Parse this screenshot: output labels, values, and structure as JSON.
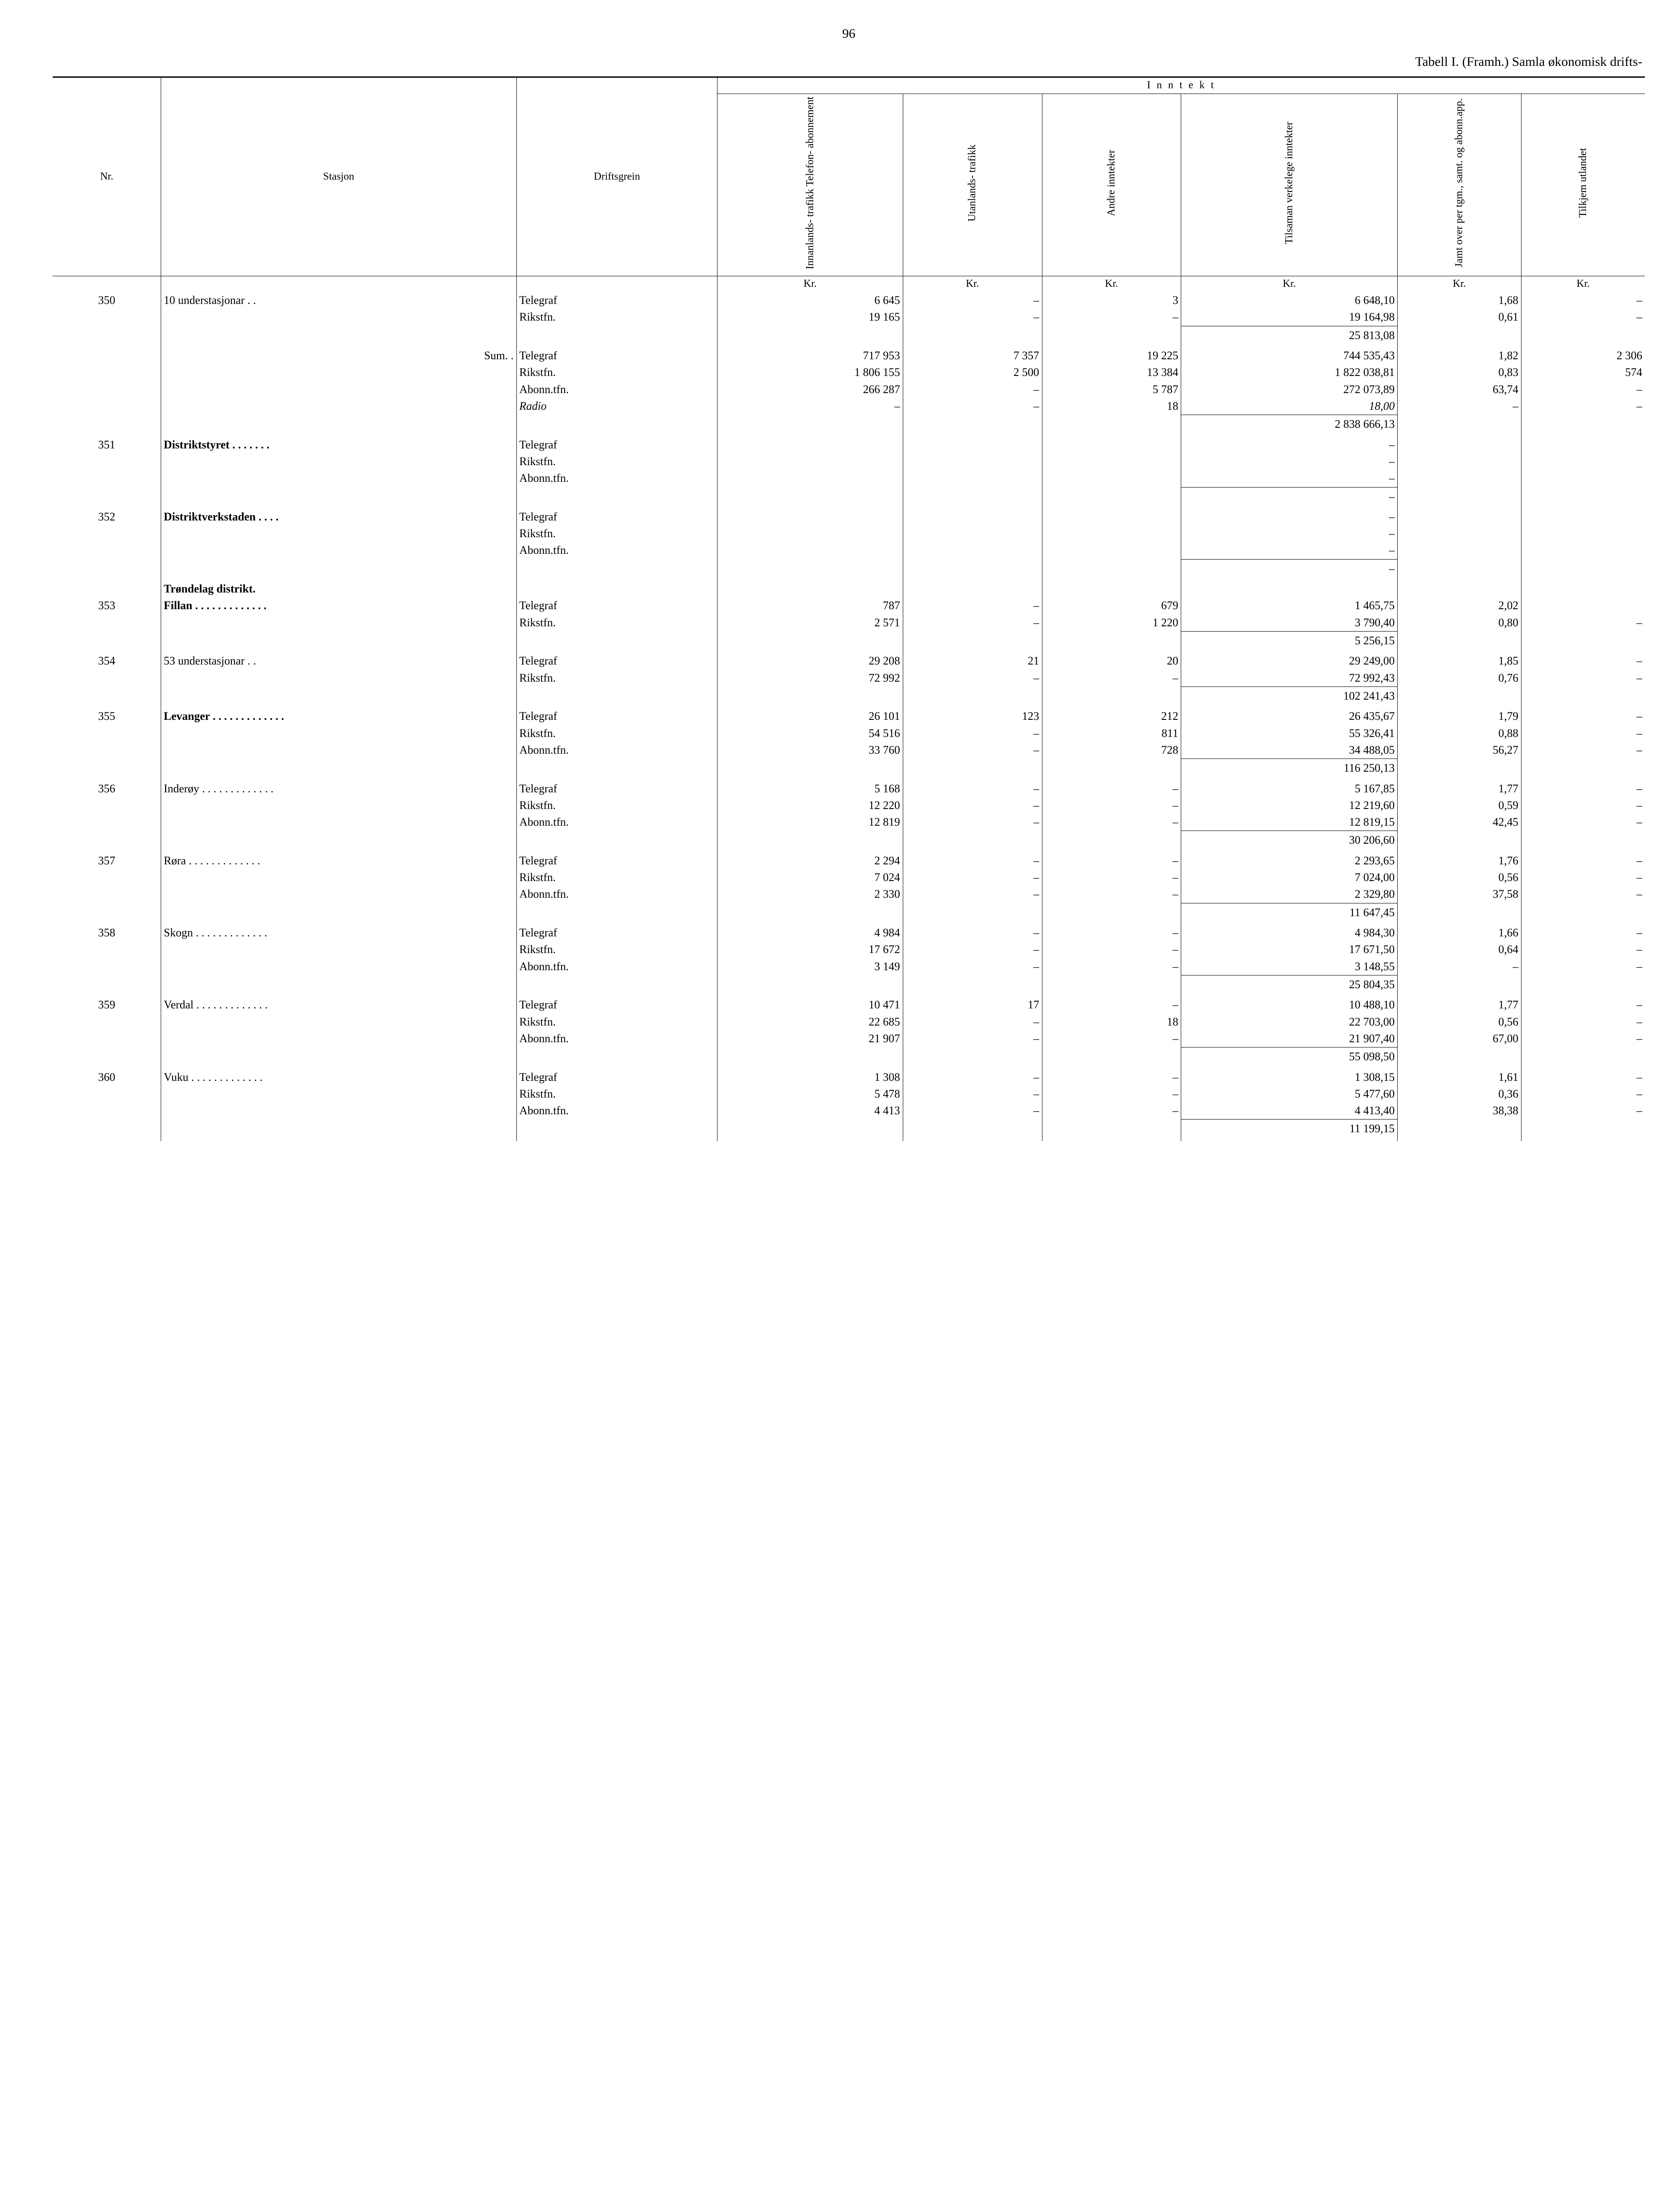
{
  "page_number": "96",
  "title_prefix": "Tabell I. (Framh.) Samla økonomisk drifts-",
  "headers": {
    "nr": "Nr.",
    "stasjon": "Stasjon",
    "driftsgrein": "Driftsgrein",
    "inntekt_group": "I n n t e k t",
    "col1": "Innanlands-\ntrafikk\nTelefon-\nabonnement",
    "col2": "Utanlands-\ntrafikk",
    "col3": "Andre\ninntekter",
    "col4": "Tilsaman\nverkelege\ninntekter",
    "col5": "Jamt over\nper tgm.,\nsamt. og\nabonn.app.",
    "col6": "Tilkjem\nutlandet",
    "kr": "Kr."
  },
  "sections": [
    {
      "nr": "350",
      "station": "10 understasjonar",
      "station_style": "normal",
      "station_suffix": "dots2",
      "rows": [
        {
          "dg": "Telegraf",
          "c1": "6 645",
          "c2": "–",
          "c3": "3",
          "c4": "6 648,10",
          "c5": "1,68",
          "c6": "–"
        },
        {
          "dg": "Rikstfn.",
          "c1": "19 165",
          "c2": "–",
          "c3": "–",
          "c4": "19 164,98",
          "c5": "0,61",
          "c6": "–"
        }
      ],
      "subtotal": "25 813,08"
    },
    {
      "nr": "",
      "station": "Sum",
      "station_style": "sum",
      "station_suffix": "dots2",
      "rows": [
        {
          "dg": "Telegraf",
          "c1": "717 953",
          "c2": "7 357",
          "c3": "19 225",
          "c4": "744 535,43",
          "c5": "1,82",
          "c6": "2 306"
        },
        {
          "dg": "Rikstfn.",
          "c1": "1 806 155",
          "c2": "2 500",
          "c3": "13 384",
          "c4": "1 822 038,81",
          "c5": "0,83",
          "c6": "574"
        },
        {
          "dg": "Abonn.tfn.",
          "c1": "266 287",
          "c2": "–",
          "c3": "5 787",
          "c4": "272 073,89",
          "c5": "63,74",
          "c6": "–"
        },
        {
          "dg": "Radio",
          "dg_italic": true,
          "c1": "–",
          "c2": "–",
          "c3": "18",
          "c4": "18,00",
          "c4_italic": true,
          "c5": "–",
          "c6": "–"
        }
      ],
      "subtotal": "2 838 666,13"
    },
    {
      "nr": "351",
      "station": "Distriktstyret",
      "station_style": "bold",
      "station_suffix": "dots7",
      "rows": [
        {
          "dg": "Telegraf",
          "c1": "",
          "c2": "",
          "c3": "",
          "c4": "–",
          "c5": "",
          "c6": ""
        },
        {
          "dg": "Rikstfn.",
          "c1": "",
          "c2": "",
          "c3": "",
          "c4": "–",
          "c5": "",
          "c6": ""
        },
        {
          "dg": "Abonn.tfn.",
          "c1": "",
          "c2": "",
          "c3": "",
          "c4": "–",
          "c5": "",
          "c6": ""
        }
      ],
      "subtotal": "–"
    },
    {
      "nr": "352",
      "station": "Distriktverkstaden",
      "station_style": "bold",
      "station_suffix": "dots4",
      "rows": [
        {
          "dg": "Telegraf",
          "c1": "",
          "c2": "",
          "c3": "",
          "c4": "–",
          "c5": "",
          "c6": ""
        },
        {
          "dg": "Rikstfn.",
          "c1": "",
          "c2": "",
          "c3": "",
          "c4": "–",
          "c5": "",
          "c6": ""
        },
        {
          "dg": "Abonn.tfn.",
          "c1": "",
          "c2": "",
          "c3": "",
          "c4": "–",
          "c5": "",
          "c6": ""
        }
      ],
      "subtotal": "–"
    },
    {
      "heading": "Trøndelag distrikt."
    },
    {
      "nr": "353",
      "station": "Fillan",
      "station_style": "bold",
      "station_suffix": "dots",
      "rows": [
        {
          "dg": "Telegraf",
          "c1": "787",
          "c2": "–",
          "c3": "679",
          "c4": "1 465,75",
          "c5": "2,02",
          "c6": ""
        },
        {
          "dg": "Rikstfn.",
          "c1": "2 571",
          "c2": "–",
          "c3": "1 220",
          "c4": "3 790,40",
          "c5": "0,80",
          "c6": "–"
        }
      ],
      "subtotal": "5 256,15"
    },
    {
      "nr": "354",
      "station": "53 understasjonar",
      "station_style": "normal",
      "station_suffix": "dots2",
      "rows": [
        {
          "dg": "Telegraf",
          "c1": "29 208",
          "c2": "21",
          "c3": "20",
          "c4": "29 249,00",
          "c5": "1,85",
          "c6": "–"
        },
        {
          "dg": "Rikstfn.",
          "c1": "72 992",
          "c2": "–",
          "c3": "–",
          "c4": "72 992,43",
          "c5": "0,76",
          "c6": "–"
        }
      ],
      "subtotal": "102 241,43"
    },
    {
      "nr": "355",
      "station": "Levanger",
      "station_style": "bold",
      "station_suffix": "dots",
      "rows": [
        {
          "dg": "Telegraf",
          "c1": "26 101",
          "c2": "123",
          "c3": "212",
          "c4": "26 435,67",
          "c5": "1,79",
          "c6": "–"
        },
        {
          "dg": "Rikstfn.",
          "c1": "54 516",
          "c2": "–",
          "c3": "811",
          "c4": "55 326,41",
          "c5": "0,88",
          "c6": "–"
        },
        {
          "dg": "Abonn.tfn.",
          "c1": "33 760",
          "c2": "–",
          "c3": "728",
          "c4": "34 488,05",
          "c5": "56,27",
          "c6": "–"
        }
      ],
      "subtotal": "116 250,13"
    },
    {
      "nr": "356",
      "station": "Inderøy",
      "station_style": "normal",
      "station_suffix": "dots",
      "rows": [
        {
          "dg": "Telegraf",
          "c1": "5 168",
          "c2": "–",
          "c3": "–",
          "c4": "5 167,85",
          "c5": "1,77",
          "c6": "–"
        },
        {
          "dg": "Rikstfn.",
          "c1": "12 220",
          "c2": "–",
          "c3": "–",
          "c4": "12 219,60",
          "c5": "0,59",
          "c6": "–"
        },
        {
          "dg": "Abonn.tfn.",
          "c1": "12 819",
          "c2": "–",
          "c3": "–",
          "c4": "12 819,15",
          "c5": "42,45",
          "c6": "–"
        }
      ],
      "subtotal": "30 206,60"
    },
    {
      "nr": "357",
      "station": "Røra",
      "station_style": "normal",
      "station_suffix": "dots",
      "rows": [
        {
          "dg": "Telegraf",
          "c1": "2 294",
          "c2": "–",
          "c3": "–",
          "c4": "2 293,65",
          "c5": "1,76",
          "c6": "–"
        },
        {
          "dg": "Rikstfn.",
          "c1": "7 024",
          "c2": "–",
          "c3": "–",
          "c4": "7 024,00",
          "c5": "0,56",
          "c6": "–"
        },
        {
          "dg": "Abonn.tfn.",
          "c1": "2 330",
          "c2": "–",
          "c3": "–",
          "c4": "2 329,80",
          "c5": "37,58",
          "c6": "–"
        }
      ],
      "subtotal": "11 647,45"
    },
    {
      "nr": "358",
      "station": "Skogn",
      "station_style": "normal",
      "station_suffix": "dots",
      "rows": [
        {
          "dg": "Telegraf",
          "c1": "4 984",
          "c2": "–",
          "c3": "–",
          "c4": "4 984,30",
          "c5": "1,66",
          "c6": "–"
        },
        {
          "dg": "Rikstfn.",
          "c1": "17 672",
          "c2": "–",
          "c3": "–",
          "c4": "17 671,50",
          "c5": "0,64",
          "c6": "–"
        },
        {
          "dg": "Abonn.tfn.",
          "c1": "3 149",
          "c2": "–",
          "c3": "–",
          "c4": "3 148,55",
          "c5": "–",
          "c6": "–"
        }
      ],
      "subtotal": "25 804,35"
    },
    {
      "nr": "359",
      "station": "Verdal",
      "station_style": "normal",
      "station_suffix": "dots",
      "rows": [
        {
          "dg": "Telegraf",
          "c1": "10 471",
          "c2": "17",
          "c3": "–",
          "c4": "10 488,10",
          "c5": "1,77",
          "c6": "–"
        },
        {
          "dg": "Rikstfn.",
          "c1": "22 685",
          "c2": "–",
          "c3": "18",
          "c4": "22 703,00",
          "c5": "0,56",
          "c6": "–"
        },
        {
          "dg": "Abonn.tfn.",
          "c1": "21 907",
          "c2": "–",
          "c3": "–",
          "c4": "21 907,40",
          "c5": "67,00",
          "c6": "–"
        }
      ],
      "subtotal": "55 098,50"
    },
    {
      "nr": "360",
      "station": "Vuku",
      "station_style": "normal",
      "station_suffix": "dots",
      "rows": [
        {
          "dg": "Telegraf",
          "c1": "1 308",
          "c2": "–",
          "c3": "–",
          "c4": "1 308,15",
          "c5": "1,61",
          "c6": "–"
        },
        {
          "dg": "Rikstfn.",
          "c1": "5 478",
          "c2": "–",
          "c3": "–",
          "c4": "5 477,60",
          "c5": "0,36",
          "c6": "–"
        },
        {
          "dg": "Abonn.tfn.",
          "c1": "4 413",
          "c2": "–",
          "c3": "–",
          "c4": "4 413,40",
          "c5": "38,38",
          "c6": "–"
        }
      ],
      "subtotal": "11 199,15"
    }
  ]
}
